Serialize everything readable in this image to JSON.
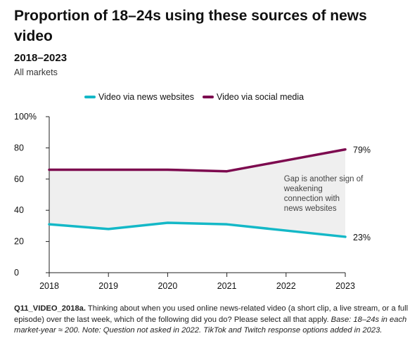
{
  "title": "Proportion of 18–24s using these sources of news video",
  "subtitle": "2018–2023",
  "markets": "All markets",
  "colors": {
    "news_websites": "#14b8c7",
    "social_media": "#7d0a4f",
    "gap_fill": "#efefef",
    "axis": "#222222"
  },
  "chart_data": {
    "type": "line",
    "x": [
      2018,
      2019,
      2020,
      2021,
      2022,
      2023
    ],
    "xticks": [
      "2018",
      "2019",
      "2020",
      "2021",
      "2022",
      "2023"
    ],
    "yticks": [
      "0",
      "20",
      "40",
      "60",
      "80",
      "100%"
    ],
    "ylim": [
      0,
      100
    ],
    "series": [
      {
        "name": "Video via news websites",
        "values": [
          31,
          28,
          32,
          31,
          27,
          23
        ],
        "end_label": "23%"
      },
      {
        "name": "Video via social media",
        "values": [
          66,
          66,
          66,
          65,
          72,
          79
        ],
        "end_label": "79%"
      }
    ],
    "annotation": [
      "Gap is another sign of",
      "weakening",
      "connection with",
      "news websites"
    ],
    "grid": false,
    "legend": "top"
  },
  "footnote": {
    "code": "Q11_VIDEO_2018a.",
    "text": " Thinking about when you used online news-related video (a short clip, a live stream, or a full episode) over the last week, which of the following did you do? Please select all that apply. ",
    "base": "Base: 18–24s in each market-year ≈ 200. Note: Question not asked in 2022. TikTok and Twitch response options added in 2023."
  }
}
